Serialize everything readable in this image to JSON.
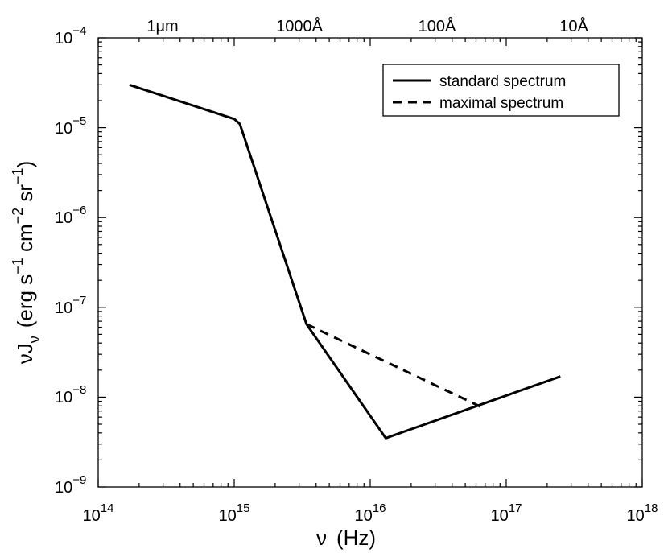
{
  "chart_data": {
    "type": "line",
    "xscale": "log",
    "yscale": "log",
    "xlim": [
      100000000000000.0,
      1e+18
    ],
    "ylim": [
      1e-09,
      0.0001
    ],
    "xlabel": "ν  (Hz)",
    "ylabel": "νJν (erg s⁻¹ cm⁻² sr⁻¹)",
    "ylabel_parts": {
      "nu": "ν",
      "J": "J",
      "sub_nu": "ν",
      "units_open": "(erg s",
      "exp1": "−1",
      "cm": " cm",
      "exp2": "−2",
      "sr": " sr",
      "exp3": "−1",
      "close": ")"
    },
    "xlabel_parts": {
      "nu": "ν",
      "units": "(Hz)"
    },
    "x_ticks": [
      {
        "value": 100000000000000.0,
        "base": "10",
        "exp": "14"
      },
      {
        "value": 1000000000000000.0,
        "base": "10",
        "exp": "15"
      },
      {
        "value": 1e+16,
        "base": "10",
        "exp": "16"
      },
      {
        "value": 1e+17,
        "base": "10",
        "exp": "17"
      },
      {
        "value": 1e+18,
        "base": "10",
        "exp": "18"
      }
    ],
    "y_ticks": [
      {
        "value": 1e-09,
        "base": "10",
        "exp": "−9"
      },
      {
        "value": 1e-08,
        "base": "10",
        "exp": "−8"
      },
      {
        "value": 1e-07,
        "base": "10",
        "exp": "−7"
      },
      {
        "value": 1e-06,
        "base": "10",
        "exp": "−6"
      },
      {
        "value": 1e-05,
        "base": "10",
        "exp": "−5"
      },
      {
        "value": 0.0001,
        "base": "10",
        "exp": "−4"
      }
    ],
    "top_axis_ticks": [
      {
        "value": 300000000000000.0,
        "label": "1μm"
      },
      {
        "value": 3000000000000000.0,
        "label": "1000Å"
      },
      {
        "value": 3e+16,
        "label": "100Å"
      },
      {
        "value": 3e+17,
        "label": "10Å"
      }
    ],
    "legend_position": "top-right",
    "series": [
      {
        "name": "standard spectrum",
        "style": "solid",
        "color": "#000000",
        "x": [
          170000000000000.0,
          1000000000000000.0,
          1100000000000000.0,
          3400000000000000.0,
          1.3e+16,
          2.5e+17
        ],
        "y": [
          3e-05,
          1.25e-05,
          1.1e-05,
          6.5e-08,
          3.5e-09,
          1.7e-08
        ]
      },
      {
        "name": "maximal spectrum",
        "style": "dashed",
        "color": "#000000",
        "x": [
          3400000000000000.0,
          6.5e+16
        ],
        "y": [
          6.5e-08,
          7.8e-09
        ]
      }
    ]
  }
}
